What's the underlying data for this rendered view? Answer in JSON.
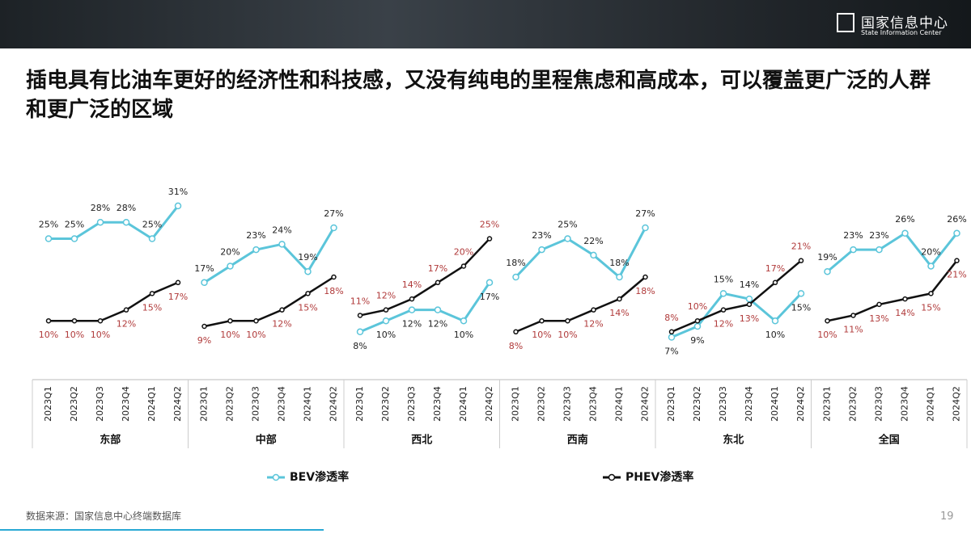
{
  "logo": {
    "name": "国家信息中心",
    "subname": "State Information Center"
  },
  "title": "插电具有比油车更好的经济性和科技感，又没有纯电的里程焦虑和高成本，可以覆盖更广泛的人群和更广泛的区域",
  "source": "数据来源：国家信息中心终端数据库",
  "page_number": "19",
  "chart_data": {
    "type": "line",
    "groups": [
      "东部",
      "中部",
      "西北",
      "西南",
      "东北",
      "全国"
    ],
    "categories": [
      "2023Q1",
      "2023Q2",
      "2023Q3",
      "2023Q4",
      "2024Q1",
      "2024Q2"
    ],
    "ylim": [
      0,
      36
    ],
    "series": [
      {
        "name": "BEV渗透率",
        "color": "#5bc5da",
        "label_color": "#222222",
        "values": [
          [
            25,
            25,
            28,
            28,
            25,
            31
          ],
          [
            17,
            20,
            23,
            24,
            19,
            27
          ],
          [
            8,
            10,
            12,
            12,
            10,
            17
          ],
          [
            18,
            23,
            25,
            22,
            18,
            27
          ],
          [
            7,
            9,
            15,
            14,
            10,
            15
          ],
          [
            19,
            23,
            23,
            26,
            20,
            26
          ]
        ],
        "value_labels": [
          [
            "25%",
            "25%",
            "28%",
            "28%",
            "25%",
            "31%"
          ],
          [
            "17%",
            "20%",
            "23%",
            "24%",
            "19%",
            "27%"
          ],
          [
            "8%",
            "10%",
            "12%",
            "12%",
            "10%",
            "17%"
          ],
          [
            "18%",
            "23%",
            "25%",
            "22%",
            "18%",
            "27%"
          ],
          [
            "7%",
            "9%",
            "15%",
            "14%",
            "10%",
            "15%"
          ],
          [
            "19%",
            "23%",
            "23%",
            "26%",
            "20%",
            "26%"
          ]
        ]
      },
      {
        "name": "PHEV渗透率",
        "color": "#111111",
        "label_color": "#b03a3a",
        "values": [
          [
            10,
            10,
            10,
            12,
            15,
            17
          ],
          [
            9,
            10,
            10,
            12,
            15,
            18
          ],
          [
            11,
            12,
            14,
            17,
            20,
            25
          ],
          [
            8,
            10,
            10,
            12,
            14,
            18
          ],
          [
            8,
            10,
            12,
            13,
            17,
            21
          ],
          [
            10,
            11,
            13,
            14,
            15,
            21
          ]
        ],
        "value_labels": [
          [
            "10%",
            "10%",
            "10%",
            "12%",
            "15%",
            "17%"
          ],
          [
            "9%",
            "10%",
            "10%",
            "12%",
            "15%",
            "18%"
          ],
          [
            "11%",
            "12%",
            "14%",
            "17%",
            "20%",
            "25%"
          ],
          [
            "8%",
            "10%",
            "10%",
            "12%",
            "14%",
            "18%"
          ],
          [
            "8%",
            "10%",
            "12%",
            "13%",
            "17%",
            "21%"
          ],
          [
            "10%",
            "11%",
            "13%",
            "14%",
            "15%",
            "21%"
          ]
        ]
      }
    ]
  }
}
